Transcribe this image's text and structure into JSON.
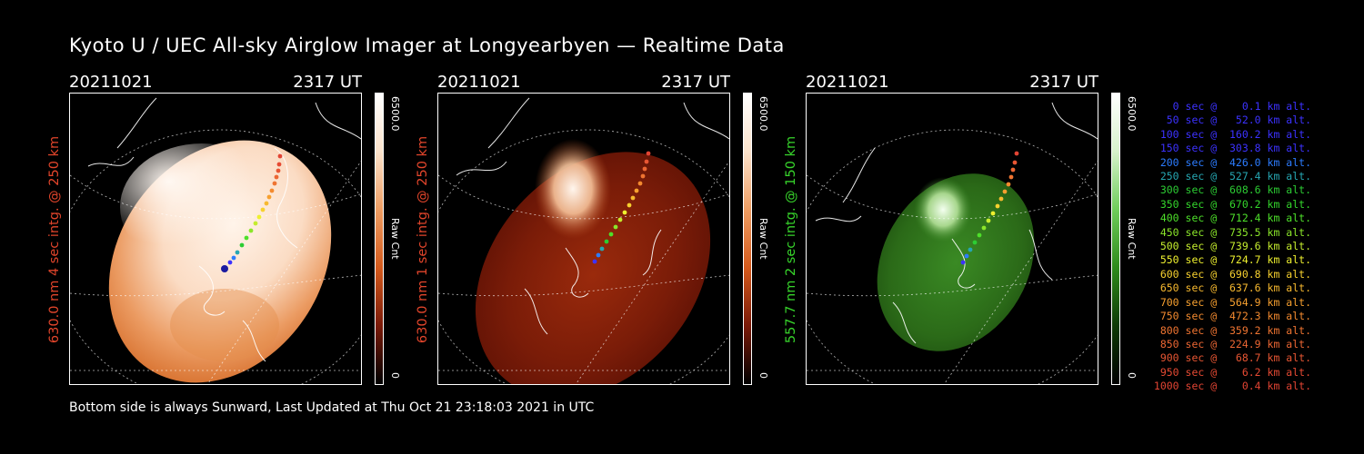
{
  "title": "Kyoto U / UEC All-sky Airglow Imager at Longyearbyen — Realtime Data",
  "panels": [
    {
      "date": "20211021",
      "time": "2317 UT",
      "ylabel": "630.0 nm 4 sec intg. @ 250 km",
      "ylabel_color": "#e2452b",
      "cbar_max": "6500.0",
      "cbar_label": "Raw Cnt",
      "cbar_min": "0",
      "colormap": "orange-bright"
    },
    {
      "date": "20211021",
      "time": "2317 UT",
      "ylabel": "630.0 nm 1 sec intg. @ 250 km",
      "ylabel_color": "#e2452b",
      "cbar_max": "6500.0",
      "cbar_label": "Raw Cnt",
      "cbar_min": "0",
      "colormap": "red-dark"
    },
    {
      "date": "20211021",
      "time": "2317 UT",
      "ylabel": "557.7 nm 2 sec intg. @ 150 km",
      "ylabel_color": "#37d42b",
      "cbar_max": "6500.0",
      "cbar_label": "Raw Cnt",
      "cbar_min": "0",
      "colormap": "green"
    }
  ],
  "legend": [
    {
      "text": "   0 sec @    0.1 km alt.",
      "color": "#3c32ff"
    },
    {
      "text": "  50 sec @   52.0 km alt.",
      "color": "#3c32ff"
    },
    {
      "text": " 100 sec @  160.2 km alt.",
      "color": "#3c32ff"
    },
    {
      "text": " 150 sec @  303.8 km alt.",
      "color": "#3c32ff"
    },
    {
      "text": " 200 sec @  426.0 km alt.",
      "color": "#2c7cff"
    },
    {
      "text": " 250 sec @  527.4 km alt.",
      "color": "#26a7b3"
    },
    {
      "text": " 300 sec @  608.6 km alt.",
      "color": "#2ccc33"
    },
    {
      "text": " 350 sec @  670.2 km alt.",
      "color": "#34d62c"
    },
    {
      "text": " 400 sec @  712.4 km alt.",
      "color": "#4ee02a"
    },
    {
      "text": " 450 sec @  735.5 km alt.",
      "color": "#8be62a"
    },
    {
      "text": " 500 sec @  739.6 km alt.",
      "color": "#c5ec2e"
    },
    {
      "text": " 550 sec @  724.7 km alt.",
      "color": "#eef02f"
    },
    {
      "text": " 600 sec @  690.8 km alt.",
      "color": "#f7d12f"
    },
    {
      "text": " 650 sec @  637.6 km alt.",
      "color": "#f7b92f"
    },
    {
      "text": " 700 sec @  564.9 km alt.",
      "color": "#f7a02f"
    },
    {
      "text": " 750 sec @  472.3 km alt.",
      "color": "#f38a2f"
    },
    {
      "text": " 800 sec @  359.2 km alt.",
      "color": "#ef7431"
    },
    {
      "text": " 850 sec @  224.9 km alt.",
      "color": "#ec6633"
    },
    {
      "text": " 900 sec @   68.7 km alt.",
      "color": "#e85633"
    },
    {
      "text": " 950 sec @    6.2 km alt.",
      "color": "#e64a33"
    },
    {
      "text": "1000 sec @    0.4 km alt.",
      "color": "#e24433"
    }
  ],
  "footer": "Bottom side is always Sunward, Last Updated at Thu Oct 21 23:18:03 2021 in UTC"
}
